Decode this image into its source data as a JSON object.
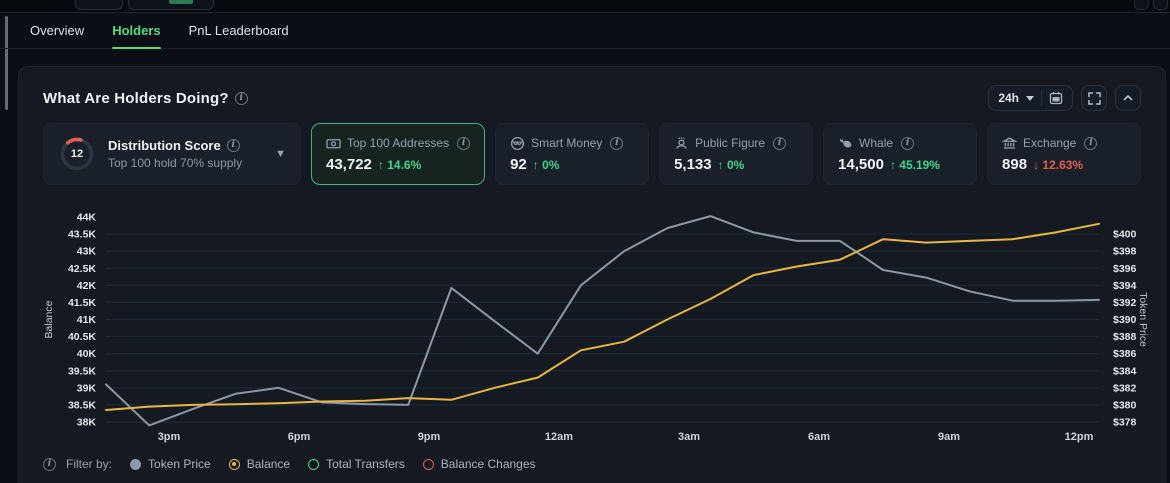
{
  "tabs": [
    {
      "label": "Overview"
    },
    {
      "label": "Holders"
    },
    {
      "label": "PnL Leaderboard"
    }
  ],
  "panel": {
    "title": "What Are Holders Doing?",
    "timeframe": "24h",
    "distribution": {
      "score": "12",
      "title": "Distribution Score",
      "subtitle": "Top 100 hold 70% supply",
      "gauge_track_color": "#2d3642",
      "gauge_arc_color": "#e0604e"
    },
    "stats": [
      {
        "icon": "banknote-icon",
        "label": "Top 100 Addresses",
        "value": "43,722",
        "arrow": "↑",
        "delta": "14.6%",
        "direction": "up",
        "selected": true
      },
      {
        "icon": "smart-money-icon",
        "label": "Smart Money",
        "value": "92",
        "arrow": "↑",
        "delta": "0%",
        "direction": "up",
        "selected": false
      },
      {
        "icon": "public-figure-icon",
        "label": "Public Figure",
        "value": "5,133",
        "arrow": "↑",
        "delta": "0%",
        "direction": "up",
        "selected": false
      },
      {
        "icon": "whale-icon",
        "label": "Whale",
        "value": "14,500",
        "arrow": "↑",
        "delta": "45.19%",
        "direction": "up",
        "selected": false
      },
      {
        "icon": "exchange-icon",
        "label": "Exchange",
        "value": "898",
        "arrow": "↓",
        "delta": "12.63%",
        "direction": "down",
        "selected": false
      }
    ],
    "filter": {
      "label": "Filter by:",
      "items": [
        {
          "label": "Token Price",
          "marker": "filled",
          "color": "#8d98a5"
        },
        {
          "label": "Balance",
          "marker": "radio-selected",
          "color": "#eab73e"
        },
        {
          "label": "Total Transfers",
          "marker": "outline",
          "color": "#3dd68c"
        },
        {
          "label": "Balance Changes",
          "marker": "outline",
          "color": "#e0604e"
        }
      ]
    }
  },
  "chart_data": {
    "type": "line",
    "title": "Holder balance vs token price over 24h",
    "grid": true,
    "x_ticks": [
      "3pm",
      "6pm",
      "9pm",
      "12am",
      "3am",
      "6am",
      "9am",
      "12pm"
    ],
    "left_axis": {
      "label": "Balance",
      "min": 38000,
      "max": 44000,
      "ticks": [
        "44K",
        "43.5K",
        "43K",
        "42.5K",
        "42K",
        "41.5K",
        "41K",
        "40.5K",
        "40K",
        "39.5K",
        "39K",
        "38.5K",
        "38K"
      ]
    },
    "right_axis": {
      "label": "Token Price",
      "min": 378,
      "max": 400,
      "ticks": [
        "$400",
        "$398",
        "$396",
        "$394",
        "$392",
        "$390",
        "$388",
        "$386",
        "$384",
        "$382",
        "$380",
        "$378"
      ]
    },
    "series": [
      {
        "name": "Token Price",
        "axis": "right",
        "color": "#8d98a5",
        "values": [
          382.4,
          377.6,
          379.5,
          381.3,
          382.0,
          380.3,
          380.1,
          380.0,
          393.7,
          389.8,
          386.0,
          394.0,
          398.0,
          400.7,
          402.1,
          400.2,
          399.2,
          399.2,
          395.8,
          394.9,
          393.3,
          392.2,
          392.2,
          392.3
        ]
      },
      {
        "name": "Balance",
        "axis": "left",
        "color": "#eab73e",
        "values": [
          38350,
          38450,
          38500,
          38520,
          38550,
          38600,
          38620,
          38700,
          38650,
          39000,
          39300,
          40100,
          40350,
          41000,
          41600,
          42300,
          42550,
          42750,
          43350,
          43250,
          43300,
          43350,
          43550,
          43800
        ]
      }
    ],
    "legend_position": "bottom"
  }
}
